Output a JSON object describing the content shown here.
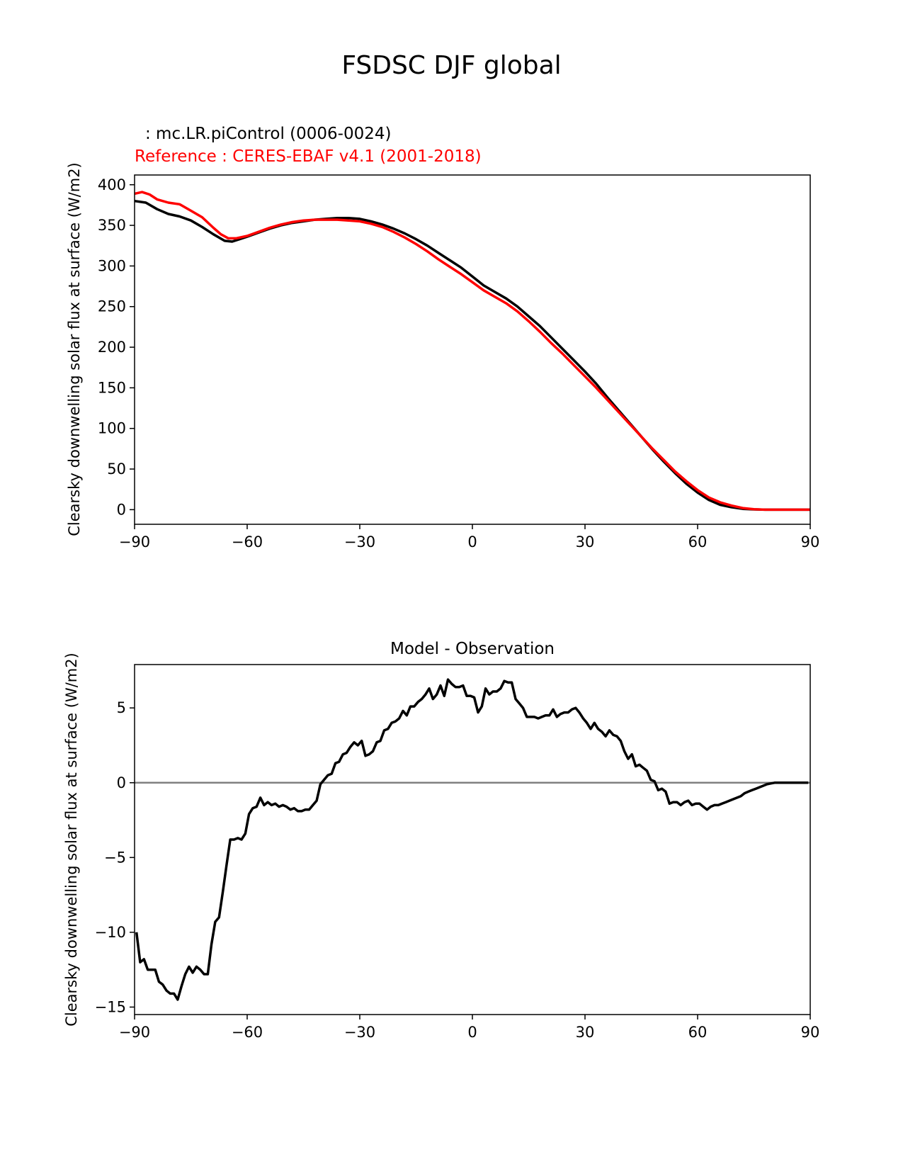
{
  "figure": {
    "title": "FSDSC DJF global",
    "model_label": " : mc.LR.piControl (0006-0024)",
    "reference_label": "Reference : CERES-EBAF v4.1 (2001-2018)"
  },
  "colors": {
    "model": "#000000",
    "reference": "#ff0000",
    "zero_line": "#808080"
  },
  "chart_data": [
    {
      "type": "line",
      "title": "",
      "xlabel": "",
      "ylabel": "Clearsky downwelling solar flux at surface (W/m2)",
      "xlim": [
        -90,
        90
      ],
      "ylim": [
        -18,
        412
      ],
      "xticks": [
        -90,
        -60,
        -30,
        0,
        30,
        60,
        90
      ],
      "xtick_labels": [
        "−90",
        "−60",
        "−30",
        "0",
        "30",
        "60",
        "90"
      ],
      "yticks": [
        0,
        50,
        100,
        150,
        200,
        250,
        300,
        350,
        400
      ],
      "ytick_labels": [
        "0",
        "50",
        "100",
        "150",
        "200",
        "250",
        "300",
        "350",
        "400"
      ],
      "grid": false,
      "series": [
        {
          "name": "mc.LR.piControl (0006-0024)",
          "color": "#000000",
          "x": [
            -90,
            -87,
            -84,
            -81,
            -78,
            -75,
            -72,
            -69,
            -66,
            -64,
            -62,
            -60,
            -57,
            -54,
            -51,
            -48,
            -45,
            -42,
            -39,
            -36,
            -33,
            -30,
            -27,
            -24,
            -21,
            -18,
            -15,
            -12,
            -9,
            -6,
            -3,
            0,
            3,
            6,
            9,
            12,
            15,
            18,
            21,
            24,
            27,
            30,
            33,
            36,
            39,
            42,
            45,
            48,
            51,
            54,
            57,
            60,
            63,
            66,
            69,
            72,
            75,
            78,
            81,
            84,
            87,
            90
          ],
          "y": [
            380,
            378,
            370,
            364,
            361,
            356,
            348,
            339,
            331,
            330,
            333,
            336,
            341,
            346,
            350,
            353,
            355,
            357,
            358,
            359,
            359,
            358,
            355,
            351,
            346,
            340,
            333,
            325,
            316,
            307,
            298,
            287,
            276,
            268,
            260,
            250,
            238,
            226,
            212,
            198,
            184,
            170,
            155,
            138,
            122,
            106,
            90,
            74,
            59,
            45,
            32,
            21,
            12,
            6,
            3,
            1,
            0.3,
            0,
            0,
            0,
            0,
            0
          ]
        },
        {
          "name": "CERES-EBAF v4.1 (2001-2018)",
          "color": "#ff0000",
          "x": [
            -90,
            -88,
            -86,
            -84,
            -81,
            -78,
            -75,
            -72,
            -69,
            -67,
            -65,
            -63,
            -60,
            -57,
            -54,
            -51,
            -48,
            -45,
            -42,
            -39,
            -36,
            -33,
            -30,
            -27,
            -24,
            -21,
            -18,
            -15,
            -12,
            -9,
            -6,
            -3,
            0,
            3,
            6,
            9,
            12,
            15,
            18,
            21,
            24,
            27,
            30,
            33,
            36,
            39,
            42,
            45,
            48,
            51,
            54,
            57,
            60,
            63,
            66,
            69,
            72,
            75,
            78,
            81,
            84,
            87,
            90
          ],
          "y": [
            389,
            391,
            388,
            382,
            378,
            376,
            368,
            360,
            347,
            339,
            334,
            334,
            337,
            342,
            347,
            351,
            354,
            356,
            357,
            357,
            357,
            356,
            355,
            352,
            348,
            342,
            335,
            327,
            318,
            308,
            299,
            290,
            280,
            270,
            262,
            254,
            244,
            232,
            219,
            205,
            192,
            178,
            164,
            150,
            135,
            120,
            105,
            90,
            75,
            61,
            47,
            35,
            24,
            15,
            9,
            5,
            2,
            0.5,
            0,
            0,
            0,
            0,
            0
          ]
        }
      ]
    },
    {
      "type": "line",
      "title": "Model - Observation",
      "xlabel": "",
      "ylabel": "Clearsky downwelling solar flux at surface (W/m2)",
      "xlim": [
        -90,
        90
      ],
      "ylim": [
        -15.5,
        7.9
      ],
      "xticks": [
        -90,
        -60,
        -30,
        0,
        30,
        60,
        90
      ],
      "xtick_labels": [
        "−90",
        "−60",
        "−30",
        "0",
        "30",
        "60",
        "90"
      ],
      "yticks": [
        -15,
        -10,
        -5,
        0,
        5
      ],
      "ytick_labels": [
        "−15",
        "−10",
        "−5",
        "0",
        "5"
      ],
      "grid": false,
      "zero_line": true,
      "series": [
        {
          "name": "",
          "color": "#000000",
          "x": [
            -89.5,
            -88.5,
            -87.5,
            -86.5,
            -85.5,
            -84.5,
            -83.5,
            -82.5,
            -81.5,
            -80.5,
            -79.5,
            -78.5,
            -77.5,
            -76.5,
            -75.5,
            -74.5,
            -73.5,
            -72.5,
            -71.5,
            -70.5,
            -69.5,
            -68.5,
            -67.5,
            -66.5,
            -65.5,
            -64.5,
            -63.5,
            -62.5,
            -61.5,
            -60.5,
            -59.5,
            -58.5,
            -57.5,
            -56.5,
            -55.5,
            -54.5,
            -53.5,
            -52.5,
            -51.5,
            -50.5,
            -49.5,
            -48.5,
            -47.5,
            -46.5,
            -45.5,
            -44.5,
            -43.5,
            -42.5,
            -41.5,
            -40.5,
            -39.5,
            -38.5,
            -37.5,
            -36.5,
            -35.5,
            -34.5,
            -33.5,
            -32.5,
            -31.5,
            -30.5,
            -29.5,
            -28.5,
            -27.5,
            -26.5,
            -25.5,
            -24.5,
            -23.5,
            -22.5,
            -21.5,
            -20.5,
            -19.5,
            -18.5,
            -17.5,
            -16.5,
            -15.5,
            -14.5,
            -13.5,
            -12.5,
            -11.5,
            -10.5,
            -9.5,
            -8.5,
            -7.5,
            -6.5,
            -5.5,
            -4.5,
            -3.5,
            -2.5,
            -1.5,
            -0.5,
            0.5,
            1.5,
            2.5,
            3.5,
            4.5,
            5.5,
            6.5,
            7.5,
            8.5,
            9.5,
            10.5,
            11.5,
            12.5,
            13.5,
            14.5,
            15.5,
            16.5,
            17.5,
            18.5,
            19.5,
            20.5,
            21.5,
            22.5,
            23.5,
            24.5,
            25.5,
            26.5,
            27.5,
            28.5,
            29.5,
            30.5,
            31.5,
            32.5,
            33.5,
            34.5,
            35.5,
            36.5,
            37.5,
            38.5,
            39.5,
            40.5,
            41.5,
            42.5,
            43.5,
            44.5,
            45.5,
            46.5,
            47.5,
            48.5,
            49.5,
            50.5,
            51.5,
            52.5,
            53.5,
            54.5,
            55.5,
            56.5,
            57.5,
            58.5,
            59.5,
            60.5,
            61.5,
            62.5,
            63.5,
            64.5,
            65.5,
            66.5,
            67.5,
            68.5,
            69.5,
            70.5,
            71.5,
            72.5,
            73.5,
            74.5,
            75.5,
            76.5,
            77.5,
            78.5,
            79.5,
            80.5,
            81.5,
            82.5,
            83.5,
            84.5,
            85.5,
            86.5,
            87.5,
            88.5,
            89.5
          ],
          "y": [
            -10.0,
            -12.0,
            -11.8,
            -12.5,
            -12.5,
            -12.5,
            -13.3,
            -13.5,
            -13.9,
            -14.1,
            -14.1,
            -14.5,
            -13.6,
            -12.8,
            -12.3,
            -12.7,
            -12.3,
            -12.5,
            -12.8,
            -12.8,
            -10.8,
            -9.3,
            -9.0,
            -7.3,
            -5.5,
            -3.8,
            -3.8,
            -3.7,
            -3.8,
            -3.4,
            -2.1,
            -1.7,
            -1.6,
            -1.0,
            -1.5,
            -1.3,
            -1.5,
            -1.4,
            -1.6,
            -1.5,
            -1.6,
            -1.8,
            -1.7,
            -1.9,
            -1.9,
            -1.8,
            -1.8,
            -1.5,
            -1.2,
            -0.1,
            0.2,
            0.5,
            0.6,
            1.3,
            1.4,
            1.9,
            2.0,
            2.4,
            2.7,
            2.5,
            2.8,
            1.8,
            1.9,
            2.1,
            2.7,
            2.8,
            3.5,
            3.6,
            4.0,
            4.1,
            4.3,
            4.8,
            4.5,
            5.1,
            5.1,
            5.4,
            5.6,
            5.9,
            6.3,
            5.6,
            5.9,
            6.5,
            5.8,
            6.9,
            6.6,
            6.4,
            6.4,
            6.5,
            5.8,
            5.8,
            5.7,
            4.7,
            5.1,
            6.3,
            5.9,
            6.1,
            6.1,
            6.3,
            6.8,
            6.7,
            6.7,
            5.6,
            5.3,
            5.0,
            4.4,
            4.4,
            4.4,
            4.3,
            4.4,
            4.5,
            4.5,
            4.9,
            4.4,
            4.6,
            4.7,
            4.7,
            4.9,
            5.0,
            4.7,
            4.3,
            4.0,
            3.6,
            4.0,
            3.6,
            3.4,
            3.1,
            3.5,
            3.2,
            3.1,
            2.8,
            2.1,
            1.6,
            1.9,
            1.1,
            1.2,
            1.0,
            0.8,
            0.2,
            0.1,
            -0.5,
            -0.4,
            -0.6,
            -1.4,
            -1.3,
            -1.3,
            -1.5,
            -1.3,
            -1.2,
            -1.5,
            -1.4,
            -1.4,
            -1.6,
            -1.8,
            -1.6,
            -1.5,
            -1.5,
            -1.4,
            -1.3,
            -1.2,
            -1.1,
            -1.0,
            -0.9,
            -0.7,
            -0.6,
            -0.5,
            -0.4,
            -0.3,
            -0.2,
            -0.1,
            -0.05,
            0.0,
            0.0,
            0.0,
            0.0,
            0.0,
            0.0,
            0.0,
            0.0,
            0.0,
            0.0
          ]
        }
      ]
    }
  ]
}
